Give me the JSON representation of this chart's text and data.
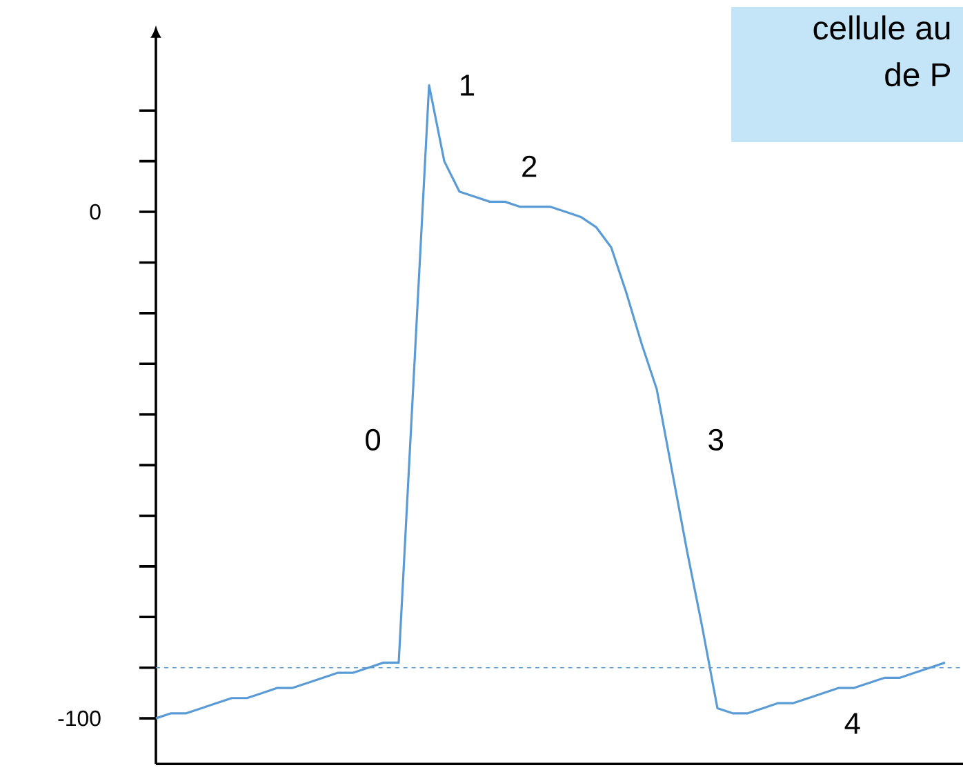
{
  "chart_data": {
    "type": "line",
    "categories": [
      null,
      null,
      null,
      null,
      null,
      null,
      null,
      null,
      null,
      null,
      null,
      null,
      null,
      null,
      null,
      null,
      null,
      null,
      null,
      null,
      null,
      null,
      null,
      null,
      null,
      null,
      null,
      null,
      null,
      null,
      null,
      null,
      null,
      null,
      null,
      null,
      null,
      null,
      null,
      null,
      null,
      null,
      null,
      null,
      null,
      null,
      null,
      null,
      null,
      null,
      null,
      null,
      null
    ],
    "series": [
      {
        "color": "#5b9bd5",
        "values": [
          -100,
          -99,
          -99,
          -98,
          -97,
          -96,
          -96,
          -95,
          -94,
          -94,
          -93,
          -92,
          -91,
          -91,
          -90,
          -89,
          -89,
          -32,
          25,
          10,
          4,
          3,
          2,
          2,
          1,
          1,
          1,
          0,
          -1,
          -3,
          -7,
          -16,
          -26,
          -35,
          -51,
          -67,
          -82,
          -98,
          -99,
          -99,
          -98,
          -97,
          -97,
          -96,
          -95,
          -94,
          -94,
          -93,
          -92,
          -92,
          -91,
          -90,
          -89
        ]
      }
    ],
    "ylim": [
      -109,
      36
    ],
    "yticks": [
      {
        "value": 20,
        "label": null
      },
      {
        "value": 10,
        "label": null
      },
      0,
      {
        "value": -10,
        "label": null
      },
      {
        "value": -20,
        "label": null
      },
      {
        "value": -30,
        "label": null
      },
      {
        "value": -40,
        "label": null
      },
      {
        "value": -50,
        "label": null
      },
      {
        "value": -60,
        "label": null
      },
      {
        "value": -70,
        "label": null
      },
      {
        "value": -80,
        "label": null
      },
      {
        "value": -90,
        "label": null
      },
      -100
    ],
    "ref_lines": [
      {
        "axis": "y",
        "value": -90,
        "color": "#5b9bd5",
        "line_style": "dashed"
      }
    ],
    "grid": false,
    "marker": "none",
    "line_style": "solid",
    "tick_labels": "y",
    "annotations": [
      "0",
      "1",
      "2",
      "3",
      "4",
      "cellule au",
      "de P"
    ]
  }
}
